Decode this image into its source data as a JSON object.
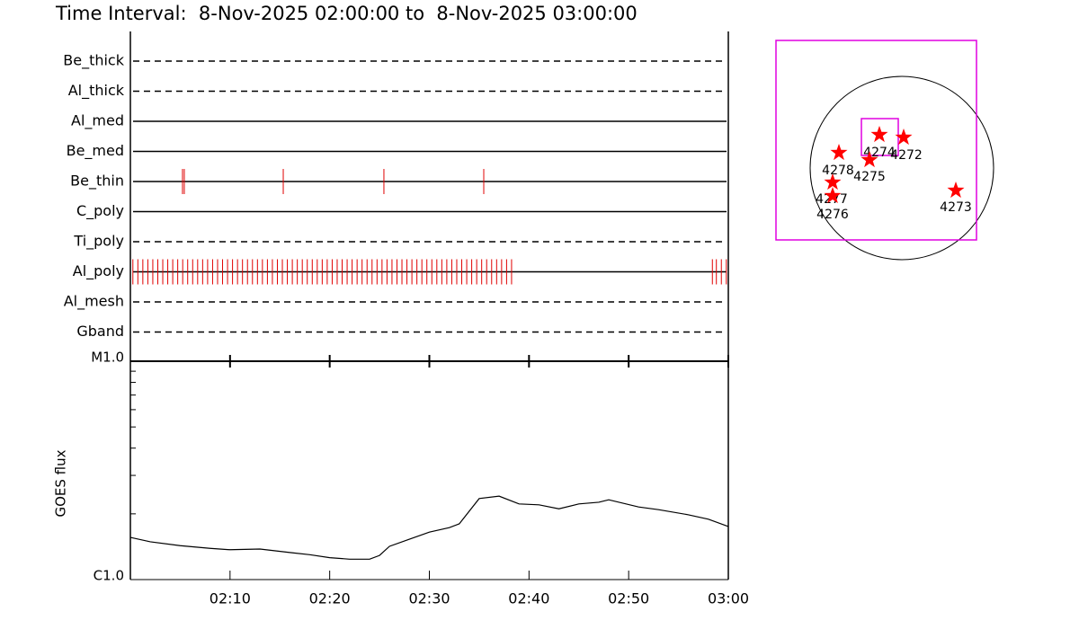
{
  "chart_data": {
    "type": "observation-timeline",
    "title": "Time Interval:  8-Nov-2025 02:00:00 to  8-Nov-2025 03:00:00",
    "xlim": [
      0,
      60
    ],
    "xticks": [
      {
        "value": 10,
        "label": "02:10"
      },
      {
        "value": 20,
        "label": "02:20"
      },
      {
        "value": 30,
        "label": "02:30"
      },
      {
        "value": 40,
        "label": "02:40"
      },
      {
        "value": 50,
        "label": "02:50"
      },
      {
        "value": 60,
        "label": "03:00"
      }
    ],
    "mark_color": "#e00000",
    "filters": [
      {
        "name": "Be_thick",
        "style": "dashed",
        "times": []
      },
      {
        "name": "Al_thick",
        "style": "dashed",
        "times": []
      },
      {
        "name": "Al_med",
        "style": "solid",
        "times": []
      },
      {
        "name": "Be_med",
        "style": "solid",
        "times": []
      },
      {
        "name": "Be_thin",
        "style": "solid",
        "times": [
          5.23,
          5.41,
          15.34,
          25.44,
          35.46
        ]
      },
      {
        "name": "C_poly",
        "style": "solid",
        "times": []
      },
      {
        "name": "Ti_poly",
        "style": "dashed",
        "times": []
      },
      {
        "name": "Al_poly",
        "style": "solid",
        "times": [
          0.25,
          0.75,
          1.25,
          1.75,
          2.25,
          2.75,
          3.25,
          3.75,
          4.25,
          4.75,
          5.25,
          5.75,
          6.25,
          6.75,
          7.25,
          7.75,
          8.25,
          8.75,
          9.25,
          9.75,
          10.25,
          10.75,
          11.25,
          11.75,
          12.25,
          12.75,
          13.25,
          13.75,
          14.25,
          14.75,
          15.25,
          15.75,
          16.25,
          16.75,
          17.25,
          17.75,
          18.25,
          18.75,
          19.25,
          19.75,
          20.25,
          20.75,
          21.25,
          21.75,
          22.25,
          22.75,
          23.25,
          23.75,
          24.25,
          24.75,
          25.25,
          25.75,
          26.25,
          26.75,
          27.25,
          27.75,
          28.25,
          28.75,
          29.25,
          29.75,
          30.25,
          30.75,
          31.25,
          31.75,
          32.25,
          32.75,
          33.25,
          33.75,
          34.25,
          34.75,
          35.25,
          35.75,
          36.25,
          36.75,
          37.25,
          37.75,
          38.25,
          58.4,
          58.8,
          59.3,
          59.8
        ]
      },
      {
        "name": "Al_mesh",
        "style": "dashed",
        "times": []
      },
      {
        "name": "Gband",
        "style": "dashed",
        "times": []
      }
    ],
    "goes": {
      "ylabel": "GOES flux",
      "log_scale": true,
      "ylim": [
        1e-06,
        1e-05
      ],
      "yticks": [
        {
          "value": 1e-06,
          "label": "C1.0"
        },
        {
          "value": 1e-05,
          "label": "M1.0"
        }
      ],
      "yminorticks": [
        2e-06,
        3e-06,
        4e-06,
        5e-06,
        6e-06,
        7e-06,
        8e-06,
        9e-06
      ],
      "x": [
        0,
        2,
        5,
        8,
        10,
        13,
        16,
        18,
        20,
        22,
        24,
        25,
        26,
        28,
        30,
        32,
        33,
        35,
        37,
        39,
        41,
        43,
        45,
        47,
        48,
        51,
        53,
        56,
        58,
        60
      ],
      "values": [
        1.56e-06,
        1.49e-06,
        1.43e-06,
        1.39e-06,
        1.37e-06,
        1.38e-06,
        1.33e-06,
        1.3e-06,
        1.26e-06,
        1.24e-06,
        1.24e-06,
        1.29e-06,
        1.42e-06,
        1.53e-06,
        1.65e-06,
        1.73e-06,
        1.8e-06,
        2.35e-06,
        2.41e-06,
        2.22e-06,
        2.2e-06,
        2.11e-06,
        2.22e-06,
        2.26e-06,
        2.32e-06,
        2.15e-06,
        2.09e-06,
        1.98e-06,
        1.89e-06,
        1.75e-06
      ],
      "color": "#000000"
    },
    "regions": [
      "4274",
      "4272",
      "4278",
      "4275",
      "4277",
      "4276",
      "4273"
    ],
    "region_color": "#ff0000",
    "fov_color": "#e000e0"
  }
}
